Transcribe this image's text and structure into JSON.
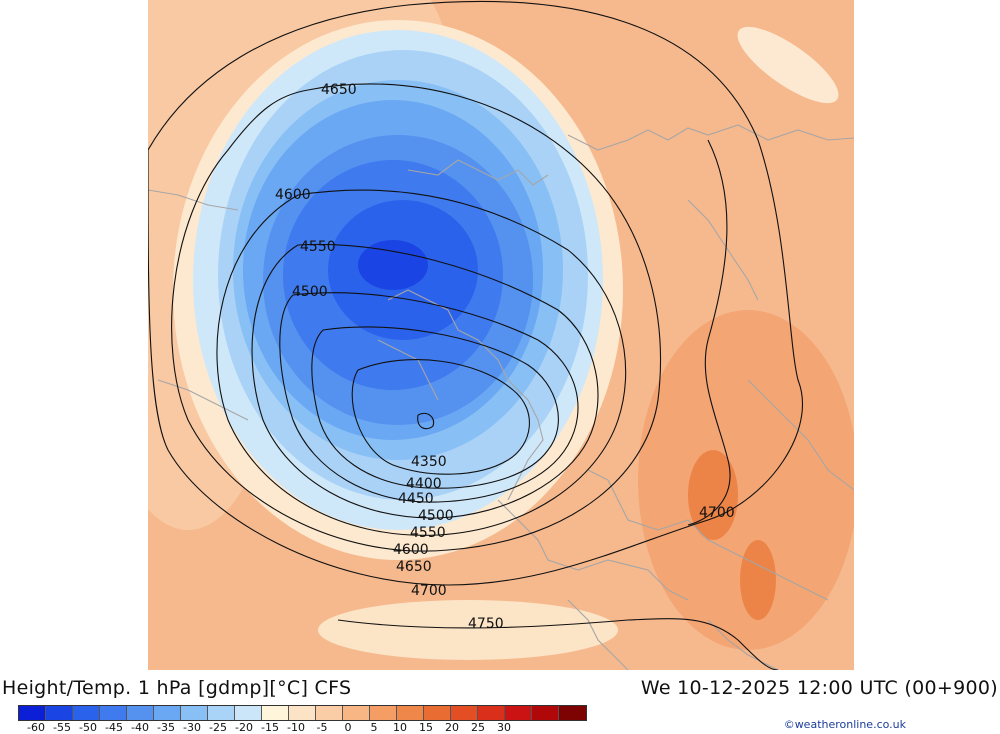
{
  "header": {
    "title": "Height/Temp. 1 hPa [gdmp][°C] CFS",
    "valid_time": "We 10-12-2025 12:00 UTC (00+900)"
  },
  "map": {
    "contour_labels": [
      "4650",
      "4600",
      "4550",
      "4500",
      "4350",
      "4400",
      "4450",
      "4500",
      "4550",
      "4600",
      "4650",
      "4700",
      "4700",
      "4750"
    ]
  },
  "legend": {
    "colors": [
      "#0a1fd6",
      "#1a45e4",
      "#2b62eb",
      "#3f7aee",
      "#5592f0",
      "#6aa8f3",
      "#88bff5",
      "#a9d3f7",
      "#cbe6f8",
      "#fff5da",
      "#fde3c6",
      "#fbcda6",
      "#f8b685",
      "#f49e66",
      "#ef874b",
      "#e96c33",
      "#e34e24",
      "#da2f1b",
      "#cc1313",
      "#b00808",
      "#7d0303"
    ],
    "labels": [
      "-60",
      "-55",
      "-50",
      "-45",
      "-40",
      "-35",
      "-30",
      "-25",
      "-20",
      "-15",
      "-10",
      "-5",
      "0",
      "5",
      "10",
      "15",
      "20",
      "25",
      "30"
    ]
  },
  "credit": "©weatheronline.co.uk"
}
